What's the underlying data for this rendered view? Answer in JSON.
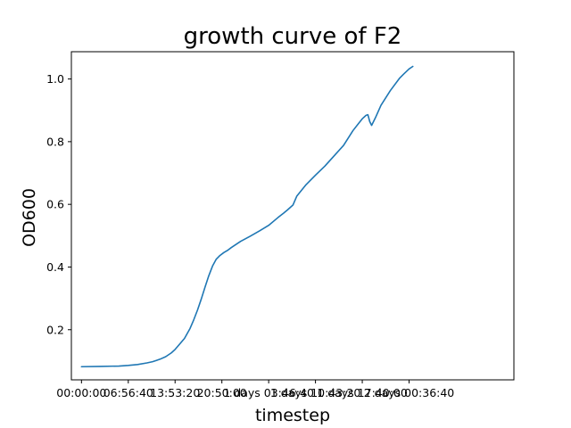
{
  "chart_data": {
    "type": "line",
    "title": "growth curve of F2",
    "xlabel": "timestep",
    "ylabel": "OD600",
    "x_unit": "seconds",
    "xlim": [
      -5400,
      231000
    ],
    "ylim": [
      0.04,
      1.087
    ],
    "x_ticks": [
      {
        "value": 0,
        "label": "00:00:00"
      },
      {
        "value": 25000,
        "label": "06:56:40"
      },
      {
        "value": 50000,
        "label": "13:53:20"
      },
      {
        "value": 75000,
        "label": "20:50:00"
      },
      {
        "value": 100000,
        "label": "1 days 03:46:40"
      },
      {
        "value": 125000,
        "label": "1 days 10:43:20"
      },
      {
        "value": 150000,
        "label": "1 days 17:40:00"
      },
      {
        "value": 175000,
        "label": "2 days 00:36:40"
      }
    ],
    "y_ticks": [
      {
        "value": 0.2,
        "label": "0.2"
      },
      {
        "value": 0.4,
        "label": "0.4"
      },
      {
        "value": 0.6,
        "label": "0.6"
      },
      {
        "value": 0.8,
        "label": "0.8"
      },
      {
        "value": 1.0,
        "label": "1.0"
      }
    ],
    "grid": false,
    "legend": "none",
    "series": [
      {
        "color": "#1f77b4",
        "x": [
          0,
          10000,
          20000,
          25000,
          30000,
          35000,
          38000,
          40000,
          42000,
          45000,
          48000,
          50000,
          52000,
          55000,
          58000,
          60000,
          62000,
          64000,
          66000,
          68000,
          70000,
          72000,
          74000,
          76000,
          78000,
          80000,
          85000,
          90000,
          95000,
          100000,
          105000,
          108000,
          110000,
          113000,
          115000,
          120000,
          125000,
          130000,
          135000,
          140000,
          145000,
          148000,
          150000,
          152000,
          153000,
          154000,
          155000,
          157000,
          160000,
          165000,
          170000,
          172000,
          175000,
          177000
        ],
        "y": [
          0.082,
          0.083,
          0.084,
          0.086,
          0.089,
          0.094,
          0.098,
          0.102,
          0.106,
          0.114,
          0.126,
          0.137,
          0.151,
          0.172,
          0.204,
          0.232,
          0.263,
          0.298,
          0.336,
          0.372,
          0.403,
          0.425,
          0.437,
          0.446,
          0.453,
          0.462,
          0.482,
          0.498,
          0.515,
          0.533,
          0.558,
          0.572,
          0.582,
          0.598,
          0.626,
          0.663,
          0.693,
          0.722,
          0.755,
          0.788,
          0.835,
          0.858,
          0.873,
          0.884,
          0.886,
          0.864,
          0.852,
          0.876,
          0.916,
          0.963,
          1.003,
          1.015,
          1.032,
          1.04
        ]
      }
    ]
  }
}
